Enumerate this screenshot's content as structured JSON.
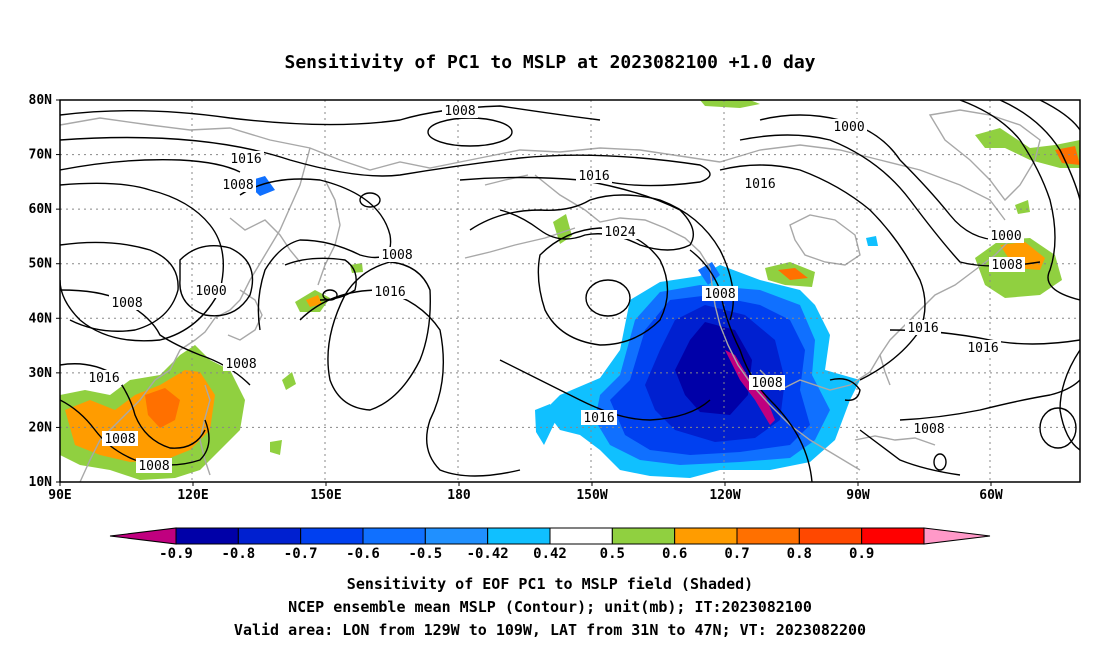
{
  "title": "Sensitivity of PC1 to MSLP at 2023082100 +1.0 day",
  "lat_labels": [
    "80N",
    "70N",
    "60N",
    "50N",
    "40N",
    "30N",
    "20N",
    "10N"
  ],
  "lon_labels": [
    "90E",
    "120E",
    "150E",
    "180",
    "150W",
    "120W",
    "90W",
    "60W"
  ],
  "contour_labels": [
    {
      "text": "1008"
    },
    {
      "text": "1000"
    },
    {
      "text": "1016"
    },
    {
      "text": "1008"
    },
    {
      "text": "1016"
    },
    {
      "text": "1016"
    },
    {
      "text": "1024"
    },
    {
      "text": "1008"
    },
    {
      "text": "1000"
    },
    {
      "text": "1008"
    },
    {
      "text": "1016"
    },
    {
      "text": "1008"
    },
    {
      "text": "1000"
    },
    {
      "text": "1008"
    },
    {
      "text": "1016"
    },
    {
      "text": "1008"
    },
    {
      "text": "1008"
    },
    {
      "text": "1016"
    },
    {
      "text": "1016"
    },
    {
      "text": "1008"
    },
    {
      "text": "1016"
    },
    {
      "text": "1008"
    }
  ],
  "colorbar": {
    "labels": [
      "-0.9",
      "-0.8",
      "-0.7",
      "-0.6",
      "-0.5",
      "-0.42",
      "0.42",
      "0.5",
      "0.6",
      "0.7",
      "0.8",
      "0.9"
    ],
    "colors": [
      "#c0007f",
      "#0000a8",
      "#0020d0",
      "#0040f0",
      "#1070ff",
      "#2090ff",
      "#10c0ff",
      "#ffffff",
      "#90d040",
      "#ff9c00",
      "#ff7000",
      "#ff4800",
      "#ff0000",
      "#ff99c8"
    ]
  },
  "caption": [
    "Sensitivity of EOF PC1 to MSLP field (Shaded)",
    "NCEP ensemble mean MSLP (Contour); unit(mb); IT:2023082100",
    "Valid area: LON from 129W to 109W, LAT from 31N to 47N; VT: 2023082200"
  ]
}
